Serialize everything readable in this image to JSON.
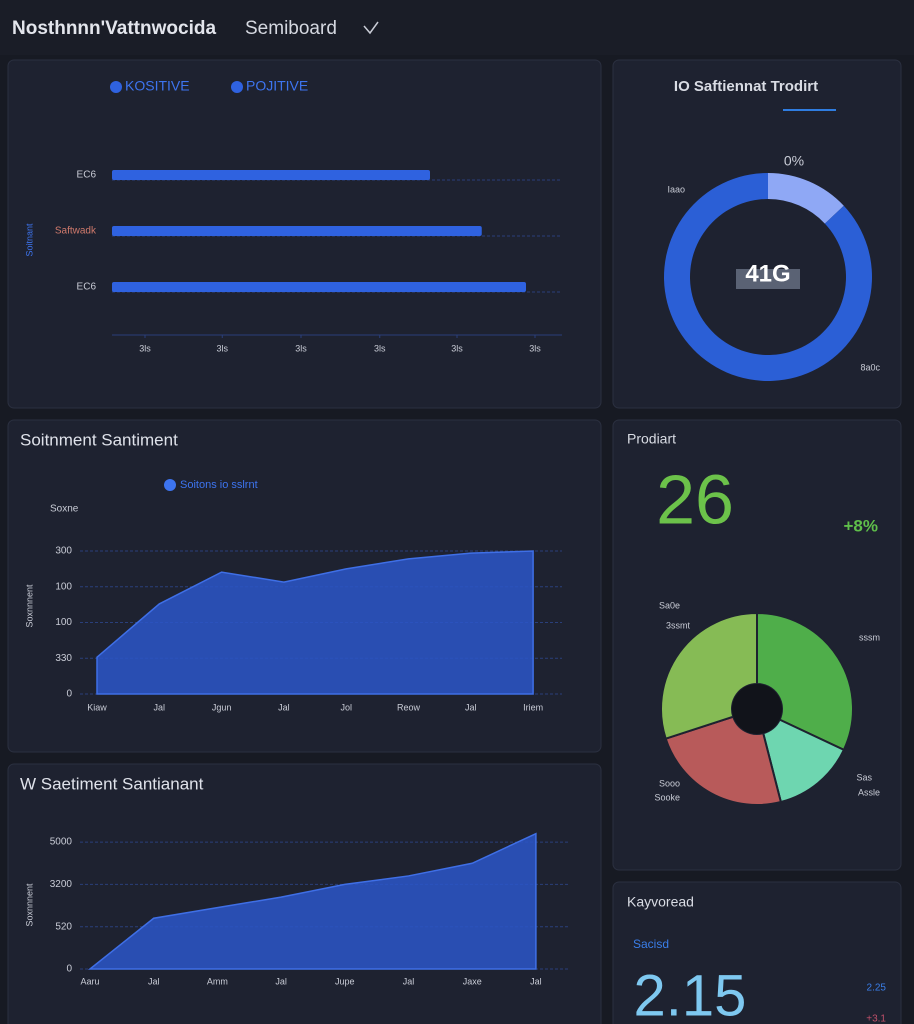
{
  "header": {
    "title": "Nosthnnn'Vattnwocida",
    "subtitle": "Semiboard"
  },
  "chart_data": [
    {
      "type": "hbar",
      "legend": [
        "KOSITIVE",
        "POJITIVE"
      ],
      "y_label": "Soitnant",
      "categories": [
        "EC6",
        "Saftwadk",
        "EC6"
      ],
      "values": [
        4.24,
        4.93,
        5.52
      ],
      "color": "#2f62e0",
      "xlim": [
        0,
        6
      ],
      "xticks": [
        {
          "value": 0.44,
          "label": "3ls"
        },
        {
          "value": 1.47,
          "label": "3ls"
        },
        {
          "value": 2.52,
          "label": "3ls"
        },
        {
          "value": 3.57,
          "label": "3ls"
        },
        {
          "value": 4.6,
          "label": "3ls"
        },
        {
          "value": 5.64,
          "label": "3ls"
        }
      ]
    },
    {
      "type": "donut",
      "title": "IO Saftiennat Trodirt",
      "center_label": "41G",
      "values": [
        13,
        87
      ],
      "colors": [
        "#8fa8f5",
        "#2b5fd6"
      ],
      "annotations": [
        "0%",
        "Iaao",
        "8a0c"
      ]
    },
    {
      "type": "area",
      "title": "Soitnment Santiment",
      "legend": "Soitons io sslrnt",
      "y_title": "Soxne",
      "y_label": "Soxnnnent",
      "categories": [
        "Kiaw",
        "Jal",
        "Jgun",
        "Jal",
        "Jol",
        "Reow",
        "Jal",
        "Iriem"
      ],
      "values": [
        1.03,
        2.52,
        3.41,
        3.13,
        3.5,
        3.78,
        3.94,
        4.0
      ],
      "color": "#2c56c9",
      "ylim": [
        0,
        4
      ],
      "yticks": [
        0,
        {
          "value": 1,
          "label": "330"
        },
        {
          "value": 2,
          "label": "100"
        },
        {
          "value": 3,
          "label": "100"
        },
        {
          "value": 4,
          "label": "300"
        }
      ],
      "grid": true
    },
    {
      "type": "area",
      "title": "W Saetiment Santianant",
      "y_label": "Soxnnnent",
      "categories": [
        "Aaru",
        "Jal",
        "Amm",
        "Jal",
        "Jupe",
        "Jal",
        "Jaxe",
        "Jal"
      ],
      "values": [
        0,
        1.2,
        1.45,
        1.7,
        2.0,
        2.2,
        2.5,
        3.2
      ],
      "color": "#2c56c9",
      "ylim": [
        0,
        3.3
      ],
      "yticks": [
        0,
        {
          "value": 1,
          "label": "520"
        },
        {
          "value": 2,
          "label": "3200"
        },
        {
          "value": 3,
          "label": "5000"
        }
      ],
      "grid": true
    },
    {
      "type": "pie",
      "values": [
        32,
        14,
        24,
        30
      ],
      "colors": [
        "#4fae4a",
        "#6ed6b0",
        "#b85a5a",
        "#86bb55"
      ],
      "annotations": [
        "Sa0e",
        "3ssmt",
        "sssm",
        "Sooo",
        "Sooke",
        "Sas",
        "Assle"
      ]
    }
  ],
  "cards": [
    {
      "title": "Prodiart",
      "value": 26,
      "change": "+8%"
    },
    {
      "title": "Kayvoread",
      "subtitle": "Sacisd",
      "value": 2.15,
      "secondary": 2.25,
      "change": "+3.1"
    }
  ]
}
